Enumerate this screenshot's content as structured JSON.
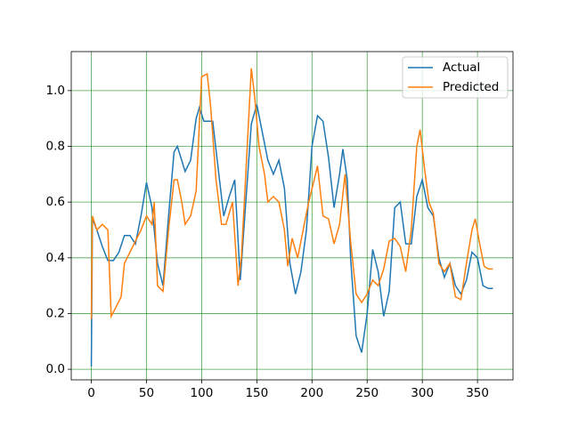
{
  "chart_data": {
    "type": "line",
    "series": [
      {
        "name": "Actual",
        "color": "#1f77b4",
        "x": [
          0,
          1,
          5,
          10,
          15,
          20,
          25,
          30,
          35,
          40,
          45,
          50,
          55,
          60,
          65,
          70,
          75,
          78,
          85,
          90,
          95,
          98,
          102,
          110,
          115,
          120,
          125,
          130,
          135,
          140,
          145,
          150,
          155,
          160,
          165,
          170,
          175,
          180,
          185,
          190,
          195,
          200,
          205,
          210,
          215,
          220,
          225,
          228,
          232,
          235,
          240,
          245,
          250,
          255,
          260,
          265,
          270,
          275,
          280,
          285,
          290,
          295,
          300,
          305,
          310,
          315,
          320,
          325,
          330,
          335,
          340,
          345,
          350,
          355,
          360,
          364
        ],
        "values": [
          0.01,
          0.54,
          0.5,
          0.44,
          0.39,
          0.39,
          0.42,
          0.48,
          0.48,
          0.45,
          0.55,
          0.67,
          0.58,
          0.38,
          0.3,
          0.55,
          0.78,
          0.8,
          0.71,
          0.75,
          0.9,
          0.94,
          0.89,
          0.89,
          0.72,
          0.55,
          0.62,
          0.68,
          0.32,
          0.6,
          0.88,
          0.95,
          0.85,
          0.75,
          0.7,
          0.75,
          0.65,
          0.38,
          0.27,
          0.35,
          0.5,
          0.8,
          0.91,
          0.89,
          0.76,
          0.58,
          0.7,
          0.79,
          0.68,
          0.4,
          0.12,
          0.06,
          0.2,
          0.43,
          0.35,
          0.19,
          0.28,
          0.58,
          0.6,
          0.45,
          0.45,
          0.62,
          0.68,
          0.58,
          0.55,
          0.4,
          0.33,
          0.38,
          0.3,
          0.27,
          0.32,
          0.42,
          0.4,
          0.3,
          0.29,
          0.29
        ]
      },
      {
        "name": "Predicted",
        "color": "#ff7f0e",
        "x": [
          0,
          1,
          5,
          10,
          15,
          18,
          22,
          27,
          30,
          35,
          40,
          45,
          50,
          55,
          57,
          60,
          65,
          70,
          75,
          78,
          82,
          85,
          90,
          95,
          100,
          105,
          108,
          113,
          118,
          122,
          128,
          133,
          136,
          140,
          145,
          148,
          152,
          157,
          160,
          165,
          170,
          175,
          178,
          182,
          187,
          192,
          197,
          202,
          205,
          210,
          215,
          220,
          225,
          230,
          235,
          240,
          245,
          250,
          255,
          260,
          265,
          270,
          275,
          280,
          285,
          290,
          295,
          298,
          302,
          306,
          310,
          315,
          320,
          325,
          330,
          335,
          340,
          345,
          348,
          352,
          356,
          360,
          364
        ],
        "values": [
          0.18,
          0.55,
          0.5,
          0.52,
          0.5,
          0.19,
          0.22,
          0.26,
          0.38,
          0.42,
          0.46,
          0.5,
          0.55,
          0.52,
          0.6,
          0.3,
          0.28,
          0.5,
          0.68,
          0.68,
          0.6,
          0.52,
          0.55,
          0.64,
          1.05,
          1.06,
          0.95,
          0.68,
          0.52,
          0.52,
          0.6,
          0.3,
          0.4,
          0.7,
          1.08,
          0.98,
          0.8,
          0.7,
          0.6,
          0.62,
          0.6,
          0.5,
          0.37,
          0.47,
          0.4,
          0.5,
          0.6,
          0.68,
          0.73,
          0.55,
          0.54,
          0.45,
          0.52,
          0.7,
          0.46,
          0.27,
          0.24,
          0.27,
          0.32,
          0.3,
          0.36,
          0.46,
          0.47,
          0.44,
          0.35,
          0.5,
          0.8,
          0.86,
          0.72,
          0.6,
          0.56,
          0.38,
          0.35,
          0.38,
          0.26,
          0.25,
          0.38,
          0.5,
          0.54,
          0.45,
          0.37,
          0.36,
          0.36
        ]
      }
    ],
    "xlim": [
      -18.2,
      382.2
    ],
    "xticks": [
      0,
      50,
      100,
      150,
      200,
      250,
      300,
      350
    ],
    "ylim": [
      -0.038,
      1.14
    ],
    "yticks": [
      {
        "value": 0,
        "label": "0.0"
      },
      0.2,
      0.4,
      0.6,
      0.8,
      {
        "value": 1,
        "label": "1.0"
      }
    ],
    "grid": true,
    "grid_color": "green",
    "legend": "upper right"
  }
}
